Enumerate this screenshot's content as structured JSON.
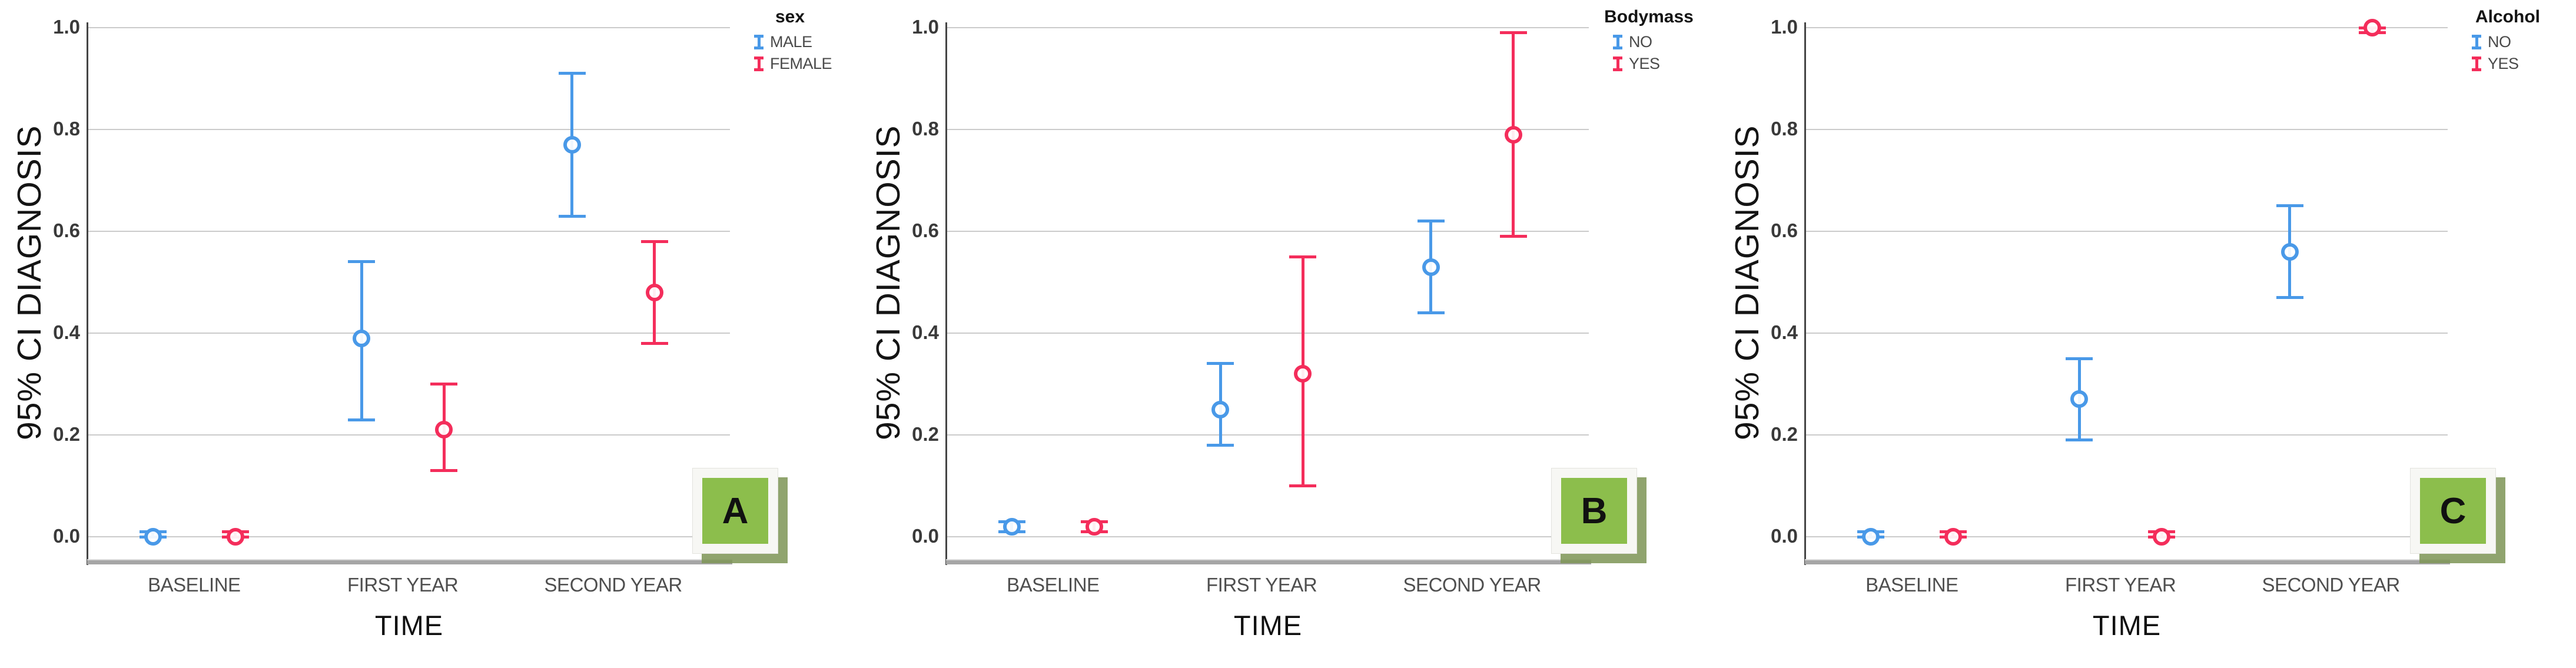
{
  "figure": {
    "background": "#FFFFFF",
    "shared_x_axis_label": "TIME",
    "shared_y_axis_label": "95% CI DIAGNOSIS",
    "colors": {
      "series_blue": "#4999E8",
      "series_red": "#F42D5B",
      "gridline": "#CBCBCB",
      "x_axis_line": "#A6A6A6",
      "y_axis_spine": "#454545",
      "tick_label": "#3A3A3A",
      "category_label": "#4F4F4F",
      "axis_title": "#101010",
      "legend_label": "#4A4A4A",
      "badge_green": "#8CBE4C",
      "badge_frame": "#F7F7F4",
      "badge_shadow": "#7D9455",
      "badge_letter": "#111111"
    }
  },
  "chart_data": [
    {
      "type": "errorbar",
      "panel_badge": "A",
      "legend_title": "sex",
      "legend_position": "top-right",
      "grid": "horizontal",
      "xlabel": "TIME",
      "ylabel": "95% CI DIAGNOSIS",
      "ylim": [
        0.0,
        1.0
      ],
      "y_ticks": [
        "0.0",
        "0.2",
        "0.4",
        "0.6",
        "0.8",
        "1.0"
      ],
      "categories": [
        "BASELINE",
        "FIRST YEAR",
        "SECOND YEAR"
      ],
      "series": [
        {
          "name": "MALE",
          "color": "#4999E8",
          "means": [
            0.0,
            0.39,
            0.77
          ],
          "ci_low": [
            0.0,
            0.23,
            0.63
          ],
          "ci_high": [
            0.01,
            0.54,
            0.91
          ]
        },
        {
          "name": "FEMALE",
          "color": "#F42D5B",
          "means": [
            0.0,
            0.21,
            0.48
          ],
          "ci_low": [
            0.0,
            0.13,
            0.38
          ],
          "ci_high": [
            0.01,
            0.3,
            0.58
          ]
        }
      ]
    },
    {
      "type": "errorbar",
      "panel_badge": "B",
      "legend_title": "Bodymass",
      "legend_position": "top-right",
      "grid": "horizontal",
      "xlabel": "TIME",
      "ylabel": "95% CI DIAGNOSIS",
      "ylim": [
        0.0,
        1.0
      ],
      "y_ticks": [
        "0.0",
        "0.2",
        "0.4",
        "0.6",
        "0.8",
        "1.0"
      ],
      "categories": [
        "BASELINE",
        "FIRST YEAR",
        "SECOND YEAR"
      ],
      "series": [
        {
          "name": "NO",
          "color": "#4999E8",
          "means": [
            0.02,
            0.25,
            0.53
          ],
          "ci_low": [
            0.01,
            0.18,
            0.44
          ],
          "ci_high": [
            0.03,
            0.34,
            0.62
          ]
        },
        {
          "name": "YES",
          "color": "#F42D5B",
          "means": [
            0.02,
            0.32,
            0.79
          ],
          "ci_low": [
            0.01,
            0.1,
            0.59
          ],
          "ci_high": [
            0.03,
            0.55,
            0.99
          ]
        }
      ]
    },
    {
      "type": "errorbar",
      "panel_badge": "C",
      "legend_title": "Alcohol",
      "legend_position": "top-right",
      "grid": "horizontal",
      "xlabel": "TIME",
      "ylabel": "95% CI DIAGNOSIS",
      "ylim": [
        0.0,
        1.0
      ],
      "y_ticks": [
        "0.0",
        "0.2",
        "0.4",
        "0.6",
        "0.8",
        "1.0"
      ],
      "categories": [
        "BASELINE",
        "FIRST YEAR",
        "SECOND YEAR"
      ],
      "series": [
        {
          "name": "NO",
          "color": "#4999E8",
          "means": [
            0.0,
            0.27,
            0.56
          ],
          "ci_low": [
            0.0,
            0.19,
            0.47
          ],
          "ci_high": [
            0.01,
            0.35,
            0.65
          ]
        },
        {
          "name": "YES",
          "color": "#F42D5B",
          "means": [
            0.0,
            0.0,
            1.0
          ],
          "ci_low": [
            0.0,
            0.0,
            0.99
          ],
          "ci_high": [
            0.01,
            0.01,
            1.0
          ]
        }
      ]
    }
  ]
}
